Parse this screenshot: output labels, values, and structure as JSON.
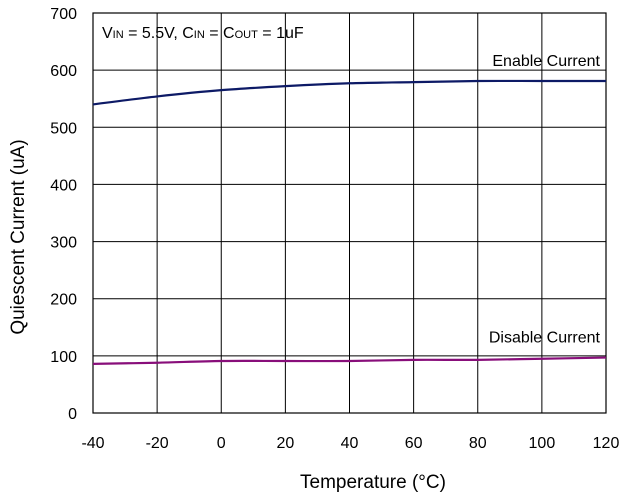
{
  "chart_data": {
    "type": "line",
    "x": [
      -40,
      -20,
      0,
      20,
      40,
      60,
      80,
      100,
      120
    ],
    "series": [
      {
        "name": "Enable Current",
        "color": "#0d1a66",
        "values": [
          540,
          554,
          565,
          572,
          577,
          579,
          581,
          581,
          581
        ]
      },
      {
        "name": "Disable Current",
        "color": "#880e7a",
        "values": [
          86,
          88,
          91,
          91,
          91,
          93,
          93,
          95,
          97
        ]
      }
    ],
    "xlabel": "Temperature (°C)",
    "ylabel": "Quiescent Current (uA)",
    "xlim": [
      -40,
      120
    ],
    "ylim": [
      0,
      700
    ],
    "xticks": [
      "-40",
      "-20",
      "0",
      "20",
      "40",
      "60",
      "80",
      "100",
      "120"
    ],
    "yticks": [
      "0",
      "100",
      "200",
      "300",
      "400",
      "500",
      "600",
      "700"
    ],
    "grid": true,
    "annotation": {
      "v": "V",
      "v_sub": "IN",
      "eq1": " = 5.5V, C",
      "cin_sub": "IN",
      "eq2": " = C",
      "cout_sub": "OUT",
      "eq3": " = 1uF"
    }
  }
}
